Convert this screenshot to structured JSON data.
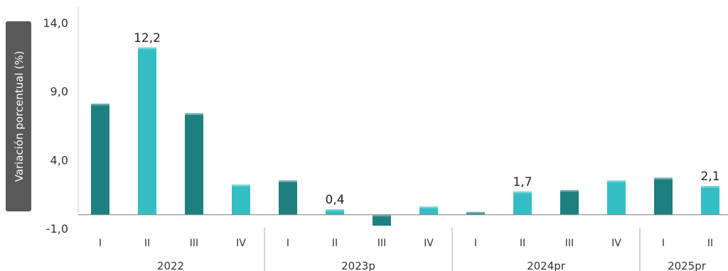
{
  "chart_data": {
    "type": "bar",
    "ylabel": "Variación porcentual (%)",
    "ylim": [
      -1.0,
      14.0
    ],
    "yticks": [
      "14,0",
      "9,0",
      "4,0",
      "-1,0"
    ],
    "ytick_values": [
      14.0,
      9.0,
      4.0,
      -1.0
    ],
    "groups": [
      {
        "label": "2022",
        "categories": [
          "I",
          "II",
          "III",
          "IV"
        ],
        "values": [
          8.1,
          12.2,
          7.4,
          2.2
        ]
      },
      {
        "label": "2023p",
        "categories": [
          "I",
          "II",
          "III",
          "IV"
        ],
        "values": [
          2.5,
          0.4,
          -0.8,
          0.6
        ]
      },
      {
        "label": "2024pr",
        "categories": [
          "I",
          "II",
          "III",
          "IV"
        ],
        "values": [
          0.2,
          1.7,
          1.8,
          2.5
        ]
      },
      {
        "label": "2025pr",
        "categories": [
          "I",
          "II"
        ],
        "values": [
          2.7,
          2.1
        ]
      }
    ],
    "data_labels": [
      {
        "group": 0,
        "index": 1,
        "text": "12,2"
      },
      {
        "group": 1,
        "index": 1,
        "text": "0,4"
      },
      {
        "group": 2,
        "index": 1,
        "text": "1,7"
      },
      {
        "group": 3,
        "index": 1,
        "text": "2,1"
      }
    ],
    "colors": {
      "dark_bar": "#1e7f80",
      "light_bar": "#35bdc4",
      "axis": "#888888",
      "ylabel_bg": "#595959"
    }
  }
}
